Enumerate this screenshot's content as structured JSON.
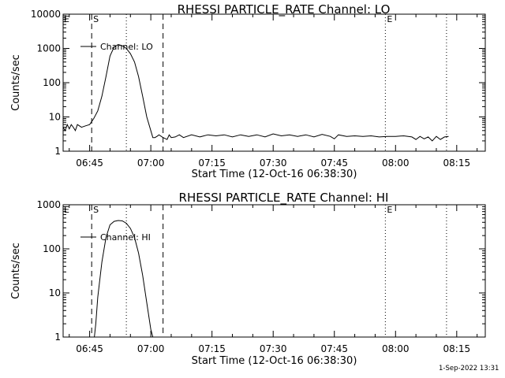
{
  "footer_stamp": "1-Sep-2022 13:31",
  "chart_data": [
    {
      "type": "line",
      "title": "RHESSI PARTICLE_RATE Channel: LO",
      "xlabel": "Start Time (12-Oct-16 06:38:30)",
      "ylabel": "Counts/sec",
      "y_scale": "log",
      "ylim": [
        1,
        10000
      ],
      "yticks": [
        {
          "value": 1,
          "label": "1"
        },
        {
          "value": 10,
          "label": "10"
        },
        {
          "value": 100,
          "label": "100"
        },
        {
          "value": 1000,
          "label": "1000"
        },
        {
          "value": 10000,
          "label": "10000"
        }
      ],
      "xlim": [
        "06:38:30",
        "08:22:00"
      ],
      "xticks": [
        "06:45",
        "07:00",
        "07:15",
        "07:30",
        "07:45",
        "08:00",
        "08:15"
      ],
      "legend": {
        "position": "top-left",
        "label": "Channel: LO"
      },
      "markers": [
        {
          "time": "06:45:30",
          "style": "dashed",
          "label": "S"
        },
        {
          "time": "06:54:00",
          "style": "dotted",
          "label": ""
        },
        {
          "time": "07:03:00",
          "style": "dashed",
          "label": ""
        },
        {
          "time": "07:57:30",
          "style": "dotted",
          "label": "E"
        },
        {
          "time": "08:12:30",
          "style": "dotted",
          "label": ""
        }
      ],
      "edge_markers": [
        "E"
      ],
      "series": [
        {
          "name": "Channel: LO",
          "x": [
            "06:38:30",
            "06:39:00",
            "06:39:30",
            "06:40:00",
            "06:40:30",
            "06:41:00",
            "06:41:30",
            "06:42:00",
            "06:43:00",
            "06:44:00",
            "06:45:00",
            "06:46:00",
            "06:47:00",
            "06:48:00",
            "06:49:00",
            "06:50:00",
            "06:51:00",
            "06:52:00",
            "06:53:00",
            "06:54:00",
            "06:55:00",
            "06:56:00",
            "06:57:00",
            "06:58:00",
            "06:59:00",
            "07:00:00",
            "07:00:30",
            "07:01:00",
            "07:01:30",
            "07:02:00",
            "07:03:00",
            "07:04:00",
            "07:04:30",
            "07:05:00",
            "07:06:00",
            "07:07:00",
            "07:08:00",
            "07:10:00",
            "07:12:00",
            "07:14:00",
            "07:16:00",
            "07:18:00",
            "07:20:00",
            "07:22:00",
            "07:24:00",
            "07:26:00",
            "07:28:00",
            "07:30:00",
            "07:32:00",
            "07:34:00",
            "07:36:00",
            "07:38:00",
            "07:40:00",
            "07:42:00",
            "07:44:00",
            "07:45:00",
            "07:46:00",
            "07:48:00",
            "07:50:00",
            "07:52:00",
            "07:54:00",
            "07:56:00",
            "07:58:00",
            "08:00:00",
            "08:02:00",
            "08:04:00",
            "08:05:00",
            "08:06:00",
            "08:07:00",
            "08:08:00",
            "08:09:00",
            "08:10:00",
            "08:11:00",
            "08:12:00",
            "08:13:00"
          ],
          "y": [
            5,
            4,
            6,
            4.5,
            6,
            5,
            4,
            6,
            5,
            5.5,
            6,
            9,
            15,
            40,
            150,
            600,
            1100,
            1300,
            1200,
            1000,
            700,
            400,
            150,
            40,
            10,
            4,
            2.5,
            2.5,
            2.7,
            3,
            2.5,
            2.2,
            3,
            2.5,
            2.6,
            3,
            2.5,
            3,
            2.6,
            3,
            2.8,
            3,
            2.6,
            3,
            2.7,
            3,
            2.6,
            3.2,
            2.8,
            3,
            2.7,
            3,
            2.6,
            3.1,
            2.7,
            2.3,
            3,
            2.7,
            2.8,
            2.7,
            2.8,
            2.6,
            2.7,
            2.7,
            2.8,
            2.6,
            2.2,
            2.7,
            2.3,
            2.6,
            2,
            2.7,
            2.2,
            2.6,
            2.7
          ]
        }
      ]
    },
    {
      "type": "line",
      "title": "RHESSI PARTICLE_RATE Channel: HI",
      "xlabel": "Start Time (12-Oct-16 06:38:30)",
      "ylabel": "Counts/sec",
      "y_scale": "log",
      "ylim": [
        1,
        1000
      ],
      "yticks": [
        {
          "value": 1,
          "label": "1"
        },
        {
          "value": 10,
          "label": "10"
        },
        {
          "value": 100,
          "label": "100"
        },
        {
          "value": 1000,
          "label": "1000"
        }
      ],
      "xlim": [
        "06:38:30",
        "08:22:00"
      ],
      "xticks": [
        "06:45",
        "07:00",
        "07:15",
        "07:30",
        "07:45",
        "08:00",
        "08:15"
      ],
      "legend": {
        "position": "top-left",
        "label": "Channel: HI"
      },
      "markers": [
        {
          "time": "06:45:30",
          "style": "dashed",
          "label": "S"
        },
        {
          "time": "06:54:00",
          "style": "dotted",
          "label": ""
        },
        {
          "time": "07:03:00",
          "style": "dashed",
          "label": ""
        },
        {
          "time": "07:57:30",
          "style": "dotted",
          "label": "E"
        },
        {
          "time": "08:12:30",
          "style": "dotted",
          "label": ""
        }
      ],
      "edge_markers": [
        "E"
      ],
      "series": [
        {
          "name": "Channel: HI",
          "x": [
            "06:46:10",
            "06:46:30",
            "06:47:00",
            "06:48:00",
            "06:49:00",
            "06:50:00",
            "06:51:00",
            "06:52:00",
            "06:53:00",
            "06:54:00",
            "06:55:00",
            "06:56:00",
            "06:57:00",
            "06:58:00",
            "06:59:00",
            "07:00:00",
            "07:00:30"
          ],
          "y": [
            1,
            2,
            8,
            50,
            180,
            350,
            420,
            440,
            430,
            380,
            290,
            180,
            80,
            25,
            6,
            1.5,
            1
          ]
        }
      ]
    }
  ]
}
